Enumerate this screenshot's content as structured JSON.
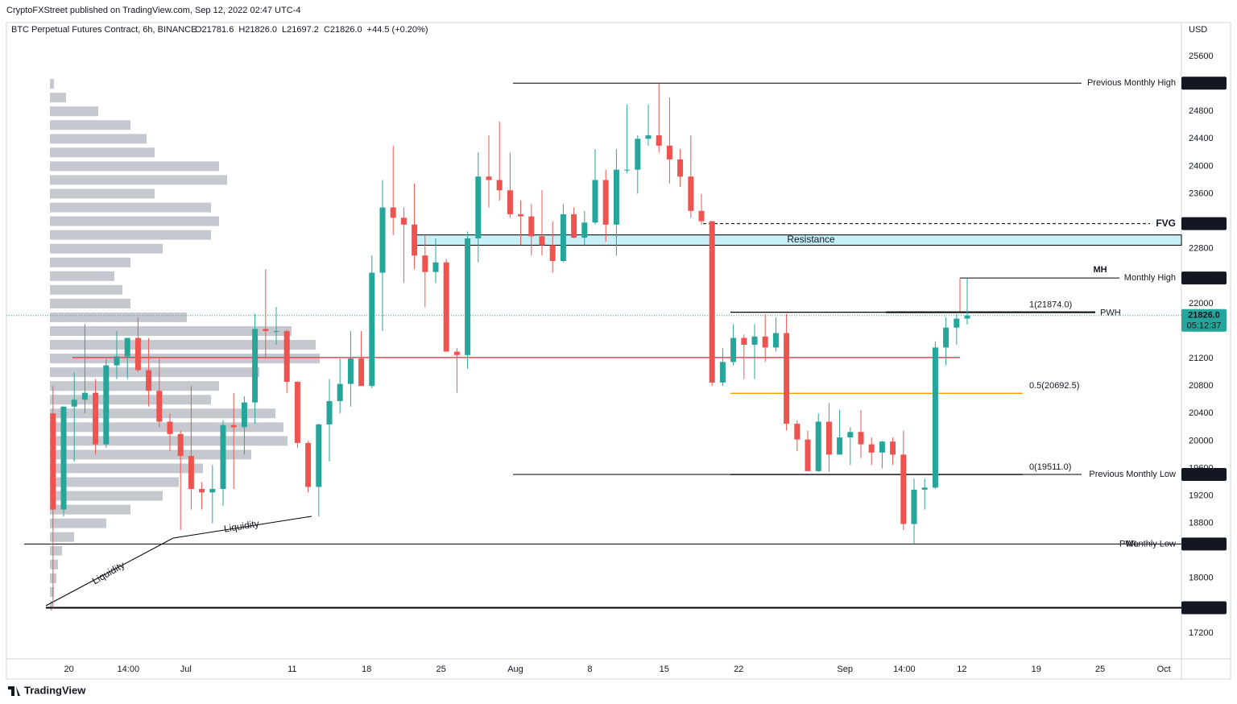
{
  "chart_data": {
    "type": "candlestick",
    "publisher": "CryptoFXStreet published on TradingView.com, Sep 12, 2022 02:47 UTC-4",
    "title": "BTC Perpetual Futures Contract, 6h, BINANCE",
    "ohlc_legend": [
      "O21781.6",
      "H21826.0",
      "L21697.2",
      "C21826.0",
      "+44.5 (+0.20%)"
    ],
    "currency": "USD",
    "brand": "TradingView",
    "up_color": "#26a69a",
    "down_color": "#ef5350",
    "ylim": [
      16825,
      26093
    ],
    "yticks": [
      25600,
      24800,
      24400,
      24000,
      23600,
      22800,
      22000,
      21200,
      20800,
      20400,
      20000,
      19600,
      19200,
      18800,
      18000,
      17200
    ],
    "grid": false,
    "xticks": [
      {
        "value": "Jun 20",
        "label": "20"
      },
      {
        "value": "Jun 25 14:00",
        "label": "14:00"
      },
      {
        "value": "Jul 1",
        "label": "Jul"
      },
      {
        "value": "Jul 11",
        "label": "11"
      },
      {
        "value": "Jul 18",
        "label": "18"
      },
      {
        "value": "Jul 25",
        "label": "25"
      },
      {
        "value": "Aug 1",
        "label": "Aug"
      },
      {
        "value": "Aug 8",
        "label": "8"
      },
      {
        "value": "Aug 15",
        "label": "15"
      },
      {
        "value": "Aug 22",
        "label": "22"
      },
      {
        "value": "Sep 1",
        "label": "Sep"
      },
      {
        "value": "Sep 6 14:00",
        "label": "14:00"
      },
      {
        "value": "Sep 12",
        "label": "12"
      },
      {
        "value": "Sep 19",
        "label": "19"
      },
      {
        "value": "Sep 25",
        "label": "25"
      },
      {
        "value": "Oct 1",
        "label": "Oct"
      }
    ],
    "x": [
      "Jun 18",
      "Jun 19",
      "Jun 20",
      "Jun 21",
      "Jun 22",
      "Jun 23",
      "Jun 24",
      "Jun 25",
      "Jun 26",
      "Jun 27",
      "Jun 28",
      "Jun 29",
      "Jun 30",
      "Jul 1",
      "Jul 2",
      "Jul 3",
      "Jul 4",
      "Jul 5",
      "Jul 6",
      "Jul 7",
      "Jul 8",
      "Jul 9",
      "Jul 10",
      "Jul 11",
      "Jul 12",
      "Jul 13",
      "Jul 14",
      "Jul 15",
      "Jul 16",
      "Jul 17",
      "Jul 18",
      "Jul 19",
      "Jul 20",
      "Jul 21",
      "Jul 22",
      "Jul 23",
      "Jul 24",
      "Jul 25",
      "Jul 26",
      "Jul 27",
      "Jul 28",
      "Jul 29",
      "Jul 30",
      "Jul 31",
      "Aug 1",
      "Aug 2",
      "Aug 3",
      "Aug 4",
      "Aug 5",
      "Aug 6",
      "Aug 7",
      "Aug 8",
      "Aug 9",
      "Aug 10",
      "Aug 11",
      "Aug 12",
      "Aug 13",
      "Aug 14",
      "Aug 15",
      "Aug 16",
      "Aug 17",
      "Aug 18",
      "Aug 19",
      "Aug 20",
      "Aug 21",
      "Aug 22",
      "Aug 23",
      "Aug 24",
      "Aug 25",
      "Aug 26",
      "Aug 27",
      "Aug 28",
      "Aug 29",
      "Aug 30",
      "Aug 31",
      "Sep 1",
      "Sep 2",
      "Sep 3",
      "Sep 4",
      "Sep 5",
      "Sep 6",
      "Sep 7",
      "Sep 8",
      "Sep 9",
      "Sep 10",
      "Sep 11",
      "Sep 12"
    ],
    "open": [
      20400,
      19000,
      20500,
      20600,
      20700,
      19950,
      21100,
      21230,
      21500,
      21030,
      20730,
      20280,
      20100,
      19780,
      19300,
      19250,
      19300,
      20230,
      20200,
      20560,
      21630,
      21600,
      21600,
      20860,
      19970,
      19330,
      20240,
      20580,
      20830,
      21200,
      20800,
      22450,
      23400,
      23250,
      23150,
      22700,
      22460,
      22600,
      21300,
      21250,
      22950,
      23850,
      23800,
      23650,
      23300,
      23270,
      22980,
      22850,
      22620,
      23300,
      22960,
      23180,
      23800,
      23150,
      23950,
      23950,
      24400,
      24450,
      24300,
      24100,
      23850,
      23350,
      23200,
      20850,
      21150,
      21500,
      21400,
      21520,
      21360,
      21570,
      20250,
      20020,
      19560,
      20280,
      19800,
      20050,
      20130,
      19950,
      19830,
      19990,
      19800,
      18790,
      19290,
      19320,
      21360,
      21650,
      21781.6
    ],
    "high": [
      20800,
      20500,
      21000,
      21700,
      20900,
      21200,
      21600,
      21500,
      21800,
      21500,
      21200,
      20400,
      20150,
      20800,
      19400,
      19650,
      20300,
      20700,
      20650,
      21850,
      22500,
      21950,
      21620,
      20870,
      20000,
      20250,
      20900,
      21200,
      21600,
      21600,
      22700,
      23800,
      24300,
      23400,
      23750,
      23000,
      22950,
      22650,
      21350,
      23050,
      24200,
      24450,
      24650,
      24200,
      23500,
      23450,
      23650,
      23200,
      23450,
      23400,
      23350,
      24250,
      23950,
      24250,
      24900,
      24450,
      24900,
      25209.9,
      25000,
      24250,
      24450,
      23600,
      23200,
      21350,
      21700,
      21550,
      21700,
      21850,
      21800,
      21850,
      20300,
      20150,
      20400,
      20550,
      20450,
      20200,
      20450,
      20050,
      20000,
      20050,
      20150,
      19450,
      19450,
      21450,
      21800,
      21850,
      22371.9
    ],
    "low": [
      17570.4,
      18900,
      19700,
      20400,
      19800,
      19900,
      20900,
      20900,
      21000,
      20500,
      20200,
      19850,
      18700,
      19000,
      19000,
      18800,
      19050,
      19300,
      19800,
      20250,
      21200,
      21400,
      20700,
      19900,
      19250,
      18900,
      19700,
      20400,
      20500,
      20800,
      20770,
      21600,
      23000,
      22300,
      22500,
      21950,
      22300,
      21300,
      20700,
      21050,
      22600,
      23400,
      23500,
      23250,
      22850,
      22700,
      22700,
      22450,
      22600,
      22950,
      22850,
      23150,
      22900,
      22700,
      23900,
      23600,
      24300,
      24200,
      23750,
      23700,
      23250,
      23150,
      20800,
      20800,
      21100,
      20900,
      20900,
      21150,
      21300,
      20150,
      19850,
      19600,
      19550,
      19550,
      19800,
      19650,
      19750,
      19650,
      19600,
      19650,
      18700,
      18497.7,
      19000,
      19300,
      21100,
      21400,
      21697.2
    ],
    "close": [
      19000,
      20500,
      20600,
      20700,
      19950,
      21100,
      21230,
      21500,
      21030,
      20730,
      20280,
      20100,
      19780,
      19300,
      19250,
      19300,
      20230,
      20200,
      20560,
      21630,
      21600,
      21600,
      20860,
      19970,
      19330,
      20240,
      20580,
      20830,
      21200,
      20800,
      22450,
      23400,
      23250,
      23150,
      22700,
      22460,
      22600,
      21300,
      21250,
      22950,
      23850,
      23800,
      23650,
      23300,
      23270,
      22980,
      22850,
      22620,
      23300,
      22960,
      23180,
      23800,
      23150,
      23950,
      23950,
      24400,
      24450,
      24300,
      24100,
      23850,
      23350,
      23200,
      20850,
      21150,
      21500,
      21400,
      21520,
      21360,
      21570,
      20250,
      20020,
      19560,
      20280,
      19800,
      20050,
      20130,
      19950,
      19830,
      19990,
      19800,
      18790,
      19290,
      19320,
      21360,
      21650,
      21781.6,
      21826.0
    ],
    "volume_profile": {
      "price": [
        25200,
        25000,
        24800,
        24600,
        24400,
        24200,
        24000,
        23800,
        23600,
        23400,
        23200,
        23000,
        22800,
        22600,
        22400,
        22200,
        22000,
        21800,
        21600,
        21400,
        21200,
        21000,
        20800,
        20600,
        20400,
        20200,
        20000,
        19800,
        19600,
        19400,
        19200,
        19000,
        18800,
        18600,
        18400,
        18200,
        18000,
        17800,
        17600
      ],
      "values": [
        5,
        20,
        60,
        100,
        120,
        130,
        210,
        220,
        130,
        200,
        210,
        200,
        140,
        100,
        80,
        90,
        100,
        170,
        300,
        330,
        335,
        260,
        210,
        200,
        280,
        290,
        295,
        250,
        190,
        160,
        140,
        100,
        70,
        30,
        15,
        10,
        8,
        5,
        3
      ],
      "color": "#b2b5be"
    },
    "poc_level": 21215,
    "poc_color": "#f23645",
    "levels": [
      {
        "label": "Previous Monthly High",
        "value": 25209.9,
        "color": "#f23645"
      },
      {
        "label": "FVG",
        "value": 23164.6,
        "color": "#4caf50"
      },
      {
        "label": "Monthly High",
        "value": 22371.9,
        "color": "#f23645",
        "note": "MH"
      },
      {
        "label": "Previous Monthly Low",
        "value": 19511.0,
        "value_label": "19511.0",
        "color": "#f23645"
      },
      {
        "label": "Monthly Low",
        "value": 18497.7,
        "color": "#f23645",
        "note": "PWL"
      },
      {
        "value": 17570.4,
        "color": "#000000"
      }
    ],
    "resistance": {
      "label": "Resistance",
      "range": [
        22850,
        23000
      ],
      "color": "#c7f0f7"
    },
    "fib": {
      "values": [
        21874.0,
        20692.5,
        19511.0
      ],
      "value_labels": [
        "1(21874.0)",
        "0.5(20692.5)",
        "0(19511.0)"
      ],
      "colors": [
        "#000000",
        "#ff9800",
        "#000000"
      ]
    },
    "pwh": {
      "label": "PWH",
      "value": 21874.0
    },
    "last_price": {
      "value": 21826.0,
      "value_label": "21826.0",
      "countdown": "05:12:37",
      "color": "#26a69a"
    },
    "annotations": [
      "Liquidity",
      "Liquidity"
    ]
  }
}
